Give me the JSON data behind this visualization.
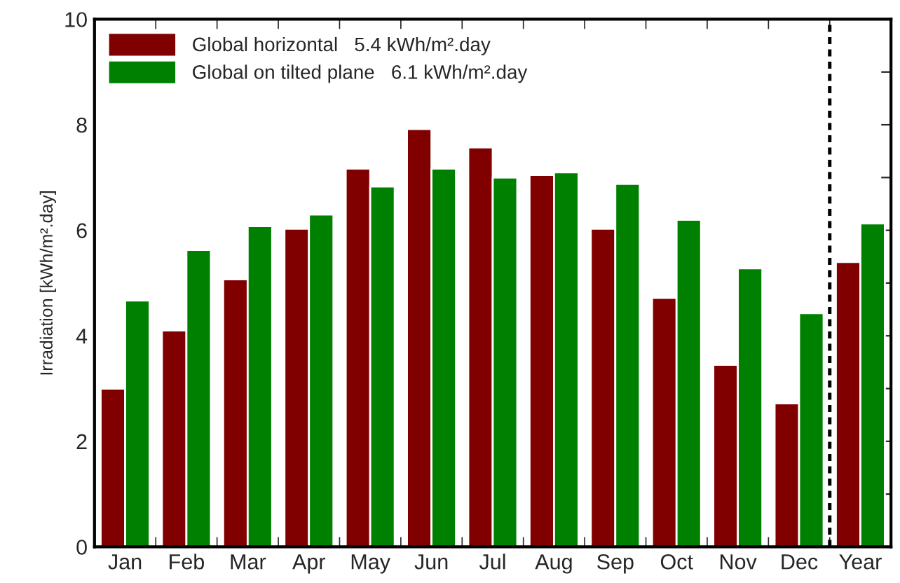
{
  "chart_data": {
    "type": "bar",
    "ylabel": "Irradiation [kWh/m².day]",
    "categories": [
      "Jan",
      "Feb",
      "Mar",
      "Apr",
      "May",
      "Jun",
      "Jul",
      "Aug",
      "Sep",
      "Oct",
      "Nov",
      "Dec",
      "Year"
    ],
    "series": [
      {
        "name": "Global horizontal   5.4 kWh/m².day",
        "color": "#800000",
        "values": [
          3.0,
          4.1,
          5.07,
          6.03,
          7.17,
          7.92,
          7.57,
          7.05,
          6.03,
          4.72,
          3.45,
          2.72,
          5.4
        ]
      },
      {
        "name": "Global on tilted plane   6.1 kWh/m².day",
        "color": "#008000",
        "values": [
          4.67,
          5.63,
          6.08,
          6.3,
          6.83,
          7.17,
          7.0,
          7.1,
          6.88,
          6.2,
          5.28,
          4.43,
          6.13
        ]
      }
    ],
    "ylim": [
      0,
      10
    ],
    "yticks": [
      0,
      {
        "value": 1,
        "label": null
      },
      2,
      {
        "value": 3,
        "label": null
      },
      4,
      {
        "value": 5,
        "label": null
      },
      6,
      {
        "value": 7,
        "label": null
      },
      8,
      {
        "value": 9,
        "label": null
      },
      10
    ],
    "grid": false,
    "legend": "top left"
  }
}
